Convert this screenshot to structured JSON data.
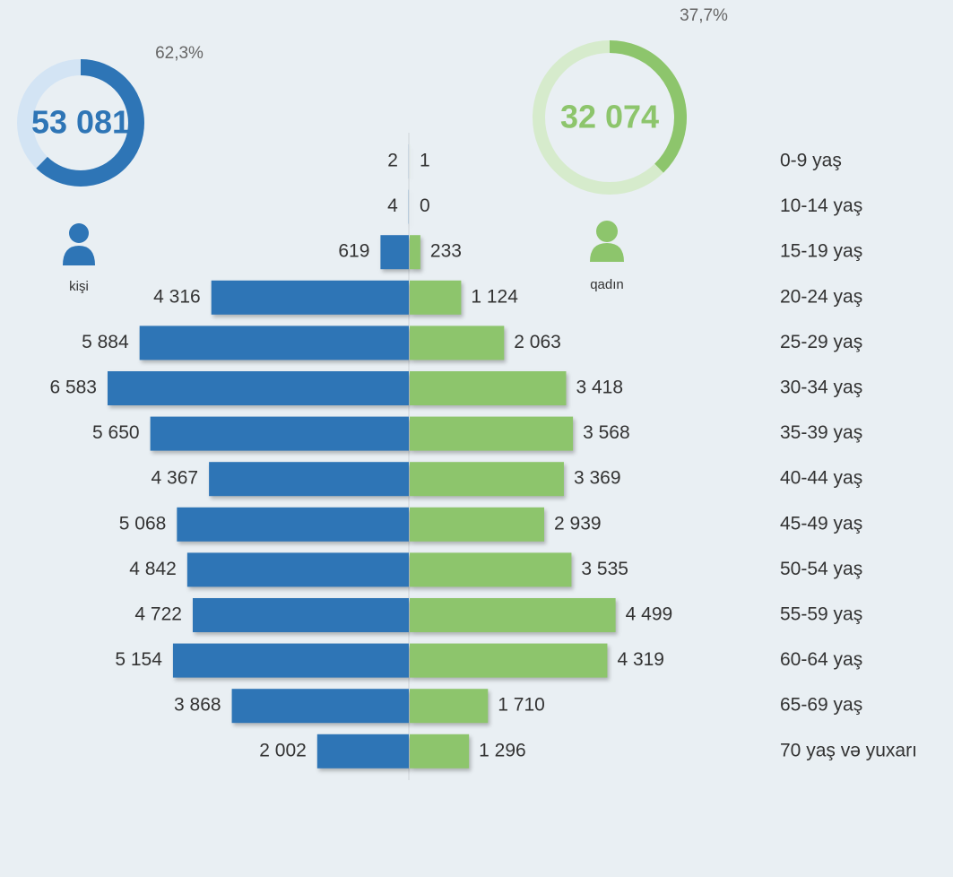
{
  "chart_data": {
    "type": "bar",
    "categories": [
      "0-9 yaş",
      "10-14 yaş",
      "15-19 yaş",
      "20-24 yaş",
      "25-29 yaş",
      "30-34 yaş",
      "35-39 yaş",
      "40-44 yaş",
      "45-49 yaş",
      "50-54 yaş",
      "55-59 yaş",
      "60-64 yaş",
      "65-69 yaş",
      "70 yaş və yuxarı"
    ],
    "series": [
      {
        "name": "kişi",
        "color": "#2e75b6",
        "ring_color": "#d3e4f4",
        "values": [
          2,
          4,
          619,
          4316,
          5884,
          6583,
          5650,
          4367,
          5068,
          4842,
          4722,
          5154,
          3868,
          2002
        ],
        "value_labels": [
          "2",
          "4",
          "619",
          "4 316",
          "5 884",
          "6 583",
          "5 650",
          "4 367",
          "5 068",
          "4 842",
          "4 722",
          "5 154",
          "3 868",
          "2 002"
        ],
        "total": 53081,
        "total_label": "53 081",
        "share": 62.3,
        "share_label": "62,3%"
      },
      {
        "name": "qadın",
        "color": "#8dc56c",
        "ring_color": "#d6ebcc",
        "values": [
          1,
          0,
          233,
          1124,
          2063,
          3418,
          3568,
          3369,
          2939,
          3535,
          4499,
          4319,
          1710,
          1296
        ],
        "value_labels": [
          "1",
          "0",
          "233",
          "1 124",
          "2 063",
          "3 418",
          "3 568",
          "3 369",
          "2 939",
          "3 535",
          "4 499",
          "4 319",
          "1 710",
          "1 296"
        ],
        "total": 32074,
        "total_label": "32 074",
        "share": 37.7,
        "share_label": "37,7%"
      }
    ]
  }
}
